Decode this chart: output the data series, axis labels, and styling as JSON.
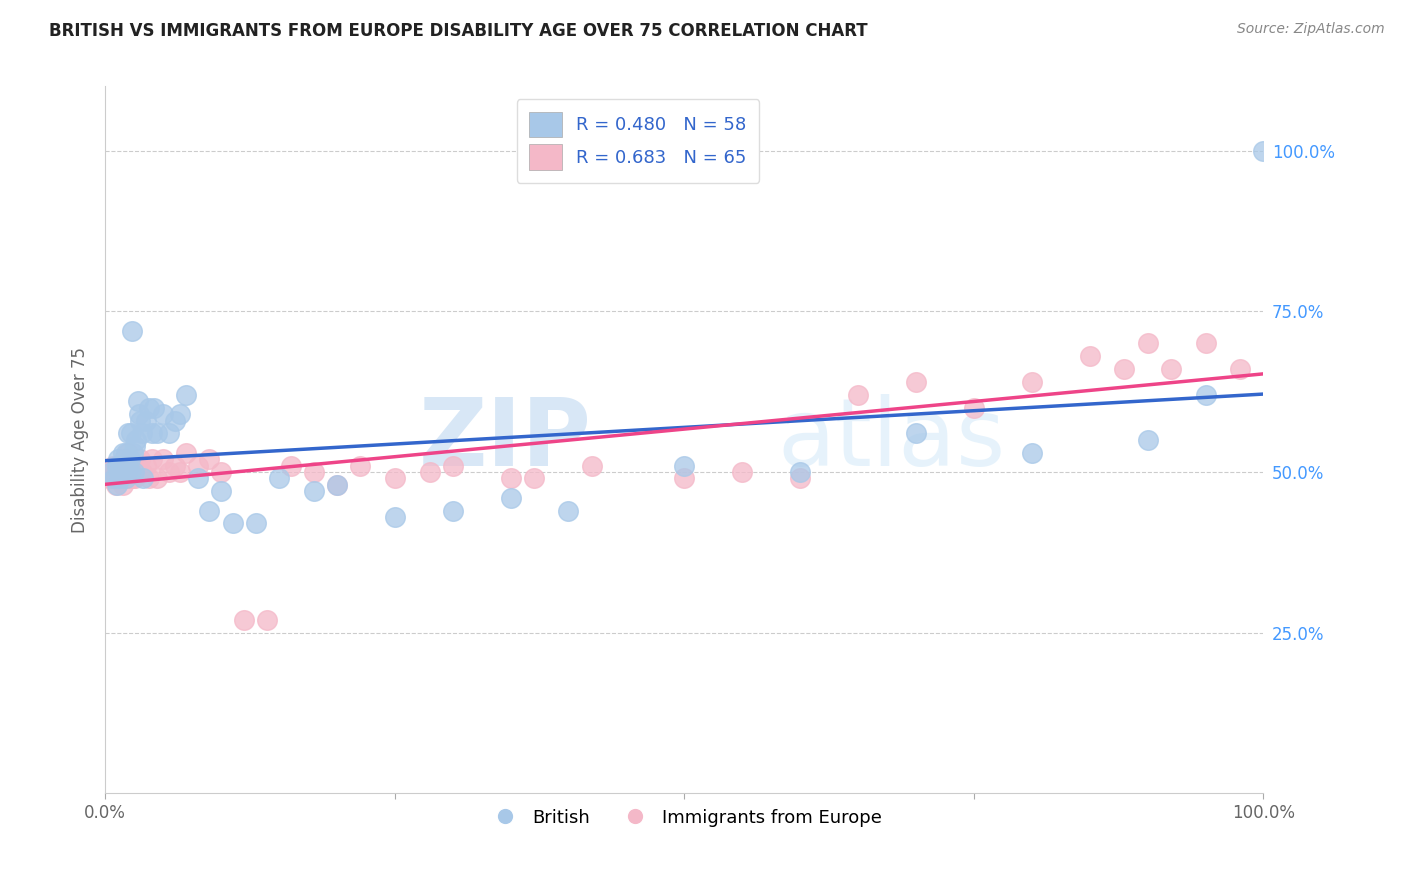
{
  "title": "BRITISH VS IMMIGRANTS FROM EUROPE DISABILITY AGE OVER 75 CORRELATION CHART",
  "source": "Source: ZipAtlas.com",
  "ylabel": "Disability Age Over 75",
  "british_R": 0.48,
  "british_N": 58,
  "immigrant_R": 0.683,
  "immigrant_N": 65,
  "british_color": "#a8c8e8",
  "immigrant_color": "#f4b8c8",
  "british_line_color": "#3366cc",
  "immigrant_line_color": "#ee4488",
  "background_color": "#ffffff",
  "grid_color": "#cccccc",
  "watermark_zip": "ZIP",
  "watermark_atlas": "atlas",
  "right_axis_labels": [
    "25.0%",
    "50.0%",
    "75.0%",
    "100.0%"
  ],
  "right_axis_color": "#4499ff",
  "ylim_min": 0.0,
  "ylim_max": 1.1,
  "xlim_min": 0.0,
  "xlim_max": 1.0,
  "british_x": [
    0.005,
    0.008,
    0.01,
    0.01,
    0.011,
    0.012,
    0.013,
    0.014,
    0.015,
    0.015,
    0.017,
    0.018,
    0.018,
    0.019,
    0.02,
    0.02,
    0.021,
    0.022,
    0.022,
    0.023,
    0.024,
    0.025,
    0.026,
    0.027,
    0.028,
    0.029,
    0.03,
    0.032,
    0.033,
    0.035,
    0.038,
    0.04,
    0.042,
    0.045,
    0.05,
    0.055,
    0.06,
    0.065,
    0.07,
    0.08,
    0.09,
    0.1,
    0.11,
    0.13,
    0.15,
    0.18,
    0.2,
    0.25,
    0.3,
    0.35,
    0.4,
    0.5,
    0.6,
    0.7,
    0.8,
    0.9,
    0.95,
    1.0
  ],
  "british_y": [
    0.5,
    0.49,
    0.51,
    0.48,
    0.52,
    0.5,
    0.49,
    0.51,
    0.53,
    0.5,
    0.51,
    0.49,
    0.53,
    0.5,
    0.56,
    0.51,
    0.52,
    0.5,
    0.56,
    0.72,
    0.53,
    0.5,
    0.54,
    0.55,
    0.61,
    0.59,
    0.58,
    0.56,
    0.49,
    0.58,
    0.6,
    0.56,
    0.6,
    0.56,
    0.59,
    0.56,
    0.58,
    0.59,
    0.62,
    0.49,
    0.44,
    0.47,
    0.42,
    0.42,
    0.49,
    0.47,
    0.48,
    0.43,
    0.44,
    0.46,
    0.44,
    0.51,
    0.5,
    0.56,
    0.53,
    0.55,
    0.62,
    1.0
  ],
  "immigrant_x": [
    0.003,
    0.005,
    0.007,
    0.008,
    0.009,
    0.01,
    0.011,
    0.012,
    0.013,
    0.014,
    0.015,
    0.015,
    0.016,
    0.017,
    0.018,
    0.019,
    0.02,
    0.02,
    0.021,
    0.022,
    0.023,
    0.024,
    0.025,
    0.026,
    0.027,
    0.028,
    0.03,
    0.032,
    0.035,
    0.038,
    0.04,
    0.045,
    0.05,
    0.055,
    0.06,
    0.065,
    0.07,
    0.08,
    0.09,
    0.1,
    0.12,
    0.14,
    0.16,
    0.18,
    0.2,
    0.22,
    0.25,
    0.28,
    0.3,
    0.35,
    0.37,
    0.42,
    0.5,
    0.55,
    0.6,
    0.65,
    0.7,
    0.75,
    0.8,
    0.85,
    0.88,
    0.9,
    0.92,
    0.95,
    0.98
  ],
  "immigrant_y": [
    0.49,
    0.5,
    0.51,
    0.49,
    0.48,
    0.5,
    0.51,
    0.49,
    0.5,
    0.51,
    0.48,
    0.5,
    0.52,
    0.5,
    0.49,
    0.51,
    0.5,
    0.53,
    0.49,
    0.5,
    0.51,
    0.49,
    0.51,
    0.49,
    0.5,
    0.51,
    0.52,
    0.5,
    0.51,
    0.49,
    0.52,
    0.49,
    0.52,
    0.5,
    0.51,
    0.5,
    0.53,
    0.51,
    0.52,
    0.5,
    0.27,
    0.27,
    0.51,
    0.5,
    0.48,
    0.51,
    0.49,
    0.5,
    0.51,
    0.49,
    0.49,
    0.51,
    0.49,
    0.5,
    0.49,
    0.62,
    0.64,
    0.6,
    0.64,
    0.68,
    0.66,
    0.7,
    0.66,
    0.7,
    0.66
  ]
}
